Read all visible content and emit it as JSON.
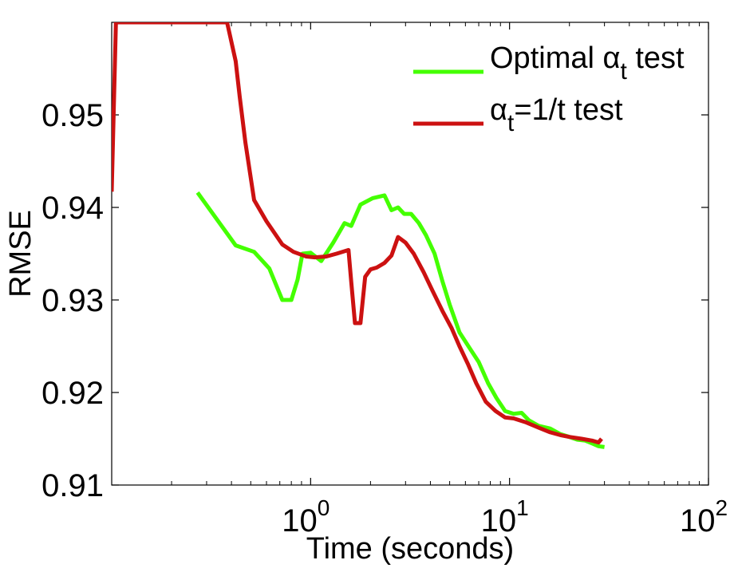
{
  "chart_data": {
    "type": "line",
    "title": "",
    "xlabel": "Time (seconds)",
    "ylabel": "RMSE",
    "xscale": "log",
    "xlim": [
      0.1,
      100
    ],
    "ylim": [
      0.91,
      0.96
    ],
    "grid": false,
    "legend_position": "top-right",
    "y_ticks": [
      0.91,
      0.92,
      0.93,
      0.94,
      0.95
    ],
    "y_tick_labels": [
      "0.91",
      "0.92",
      "0.93",
      "0.94",
      "0.95"
    ],
    "x_ticks": [
      {
        "value": 1,
        "base": "10",
        "exp": "0"
      },
      {
        "value": 10,
        "base": "10",
        "exp": "1"
      },
      {
        "value": 100,
        "base": "10",
        "exp": "2"
      }
    ],
    "series": [
      {
        "name": "Optimal α_t test",
        "legend_main": "Optimal α",
        "legend_sub": "t",
        "legend_tail": " test",
        "color": "#44ff00",
        "points": [
          [
            0.27,
            0.9416
          ],
          [
            0.42,
            0.9359
          ],
          [
            0.52,
            0.9352
          ],
          [
            0.62,
            0.9334
          ],
          [
            0.72,
            0.93
          ],
          [
            0.8,
            0.93
          ],
          [
            0.86,
            0.9322
          ],
          [
            0.91,
            0.935
          ],
          [
            1.0,
            0.9351
          ],
          [
            1.13,
            0.9342
          ],
          [
            1.3,
            0.9362
          ],
          [
            1.48,
            0.9383
          ],
          [
            1.6,
            0.938
          ],
          [
            1.78,
            0.9403
          ],
          [
            2.05,
            0.941
          ],
          [
            2.35,
            0.9413
          ],
          [
            2.55,
            0.9397
          ],
          [
            2.75,
            0.94
          ],
          [
            2.95,
            0.9393
          ],
          [
            3.2,
            0.9393
          ],
          [
            3.5,
            0.9383
          ],
          [
            3.8,
            0.937
          ],
          [
            4.2,
            0.935
          ],
          [
            4.6,
            0.932
          ],
          [
            5.0,
            0.9295
          ],
          [
            5.6,
            0.9265
          ],
          [
            6.3,
            0.9248
          ],
          [
            7.0,
            0.9233
          ],
          [
            7.8,
            0.921
          ],
          [
            8.6,
            0.9194
          ],
          [
            9.5,
            0.918
          ],
          [
            10.5,
            0.9177
          ],
          [
            11.5,
            0.9178
          ],
          [
            12.5,
            0.917
          ],
          [
            14.0,
            0.9164
          ],
          [
            16.0,
            0.9161
          ],
          [
            18.0,
            0.9155
          ],
          [
            20.0,
            0.9152
          ],
          [
            22.0,
            0.9149
          ],
          [
            24.0,
            0.9148
          ],
          [
            26.0,
            0.9145
          ],
          [
            28.0,
            0.9142
          ],
          [
            30.0,
            0.9141
          ]
        ]
      },
      {
        "name": "α_t=1/t test",
        "legend_main": "α",
        "legend_sub": "t",
        "legend_tail": "=1/t test",
        "color": "#cc1111",
        "points": [
          [
            0.1,
            0.9417
          ],
          [
            0.105,
            0.96
          ],
          [
            0.38,
            0.96
          ],
          [
            0.42,
            0.9558
          ],
          [
            0.44,
            0.952
          ],
          [
            0.47,
            0.947
          ],
          [
            0.52,
            0.9408
          ],
          [
            0.6,
            0.9385
          ],
          [
            0.72,
            0.936
          ],
          [
            0.82,
            0.9352
          ],
          [
            0.95,
            0.9347
          ],
          [
            1.05,
            0.9346
          ],
          [
            1.2,
            0.9347
          ],
          [
            1.35,
            0.935
          ],
          [
            1.55,
            0.9354
          ],
          [
            1.6,
            0.932
          ],
          [
            1.67,
            0.9275
          ],
          [
            1.78,
            0.9275
          ],
          [
            1.88,
            0.9325
          ],
          [
            2.0,
            0.9333
          ],
          [
            2.15,
            0.9335
          ],
          [
            2.35,
            0.934
          ],
          [
            2.55,
            0.9348
          ],
          [
            2.75,
            0.9368
          ],
          [
            3.0,
            0.9362
          ],
          [
            3.3,
            0.935
          ],
          [
            3.7,
            0.933
          ],
          [
            4.1,
            0.931
          ],
          [
            4.6,
            0.9288
          ],
          [
            5.1,
            0.927
          ],
          [
            5.6,
            0.925
          ],
          [
            6.2,
            0.923
          ],
          [
            6.8,
            0.921
          ],
          [
            7.6,
            0.919
          ],
          [
            8.5,
            0.918
          ],
          [
            9.5,
            0.9173
          ],
          [
            10.5,
            0.9172
          ],
          [
            12.0,
            0.9168
          ],
          [
            14.0,
            0.9162
          ],
          [
            16.0,
            0.9157
          ],
          [
            18.0,
            0.9154
          ],
          [
            20.0,
            0.9152
          ],
          [
            23.0,
            0.915
          ],
          [
            26.0,
            0.9148
          ],
          [
            28.0,
            0.9146
          ],
          [
            29.0,
            0.915
          ]
        ]
      }
    ]
  }
}
